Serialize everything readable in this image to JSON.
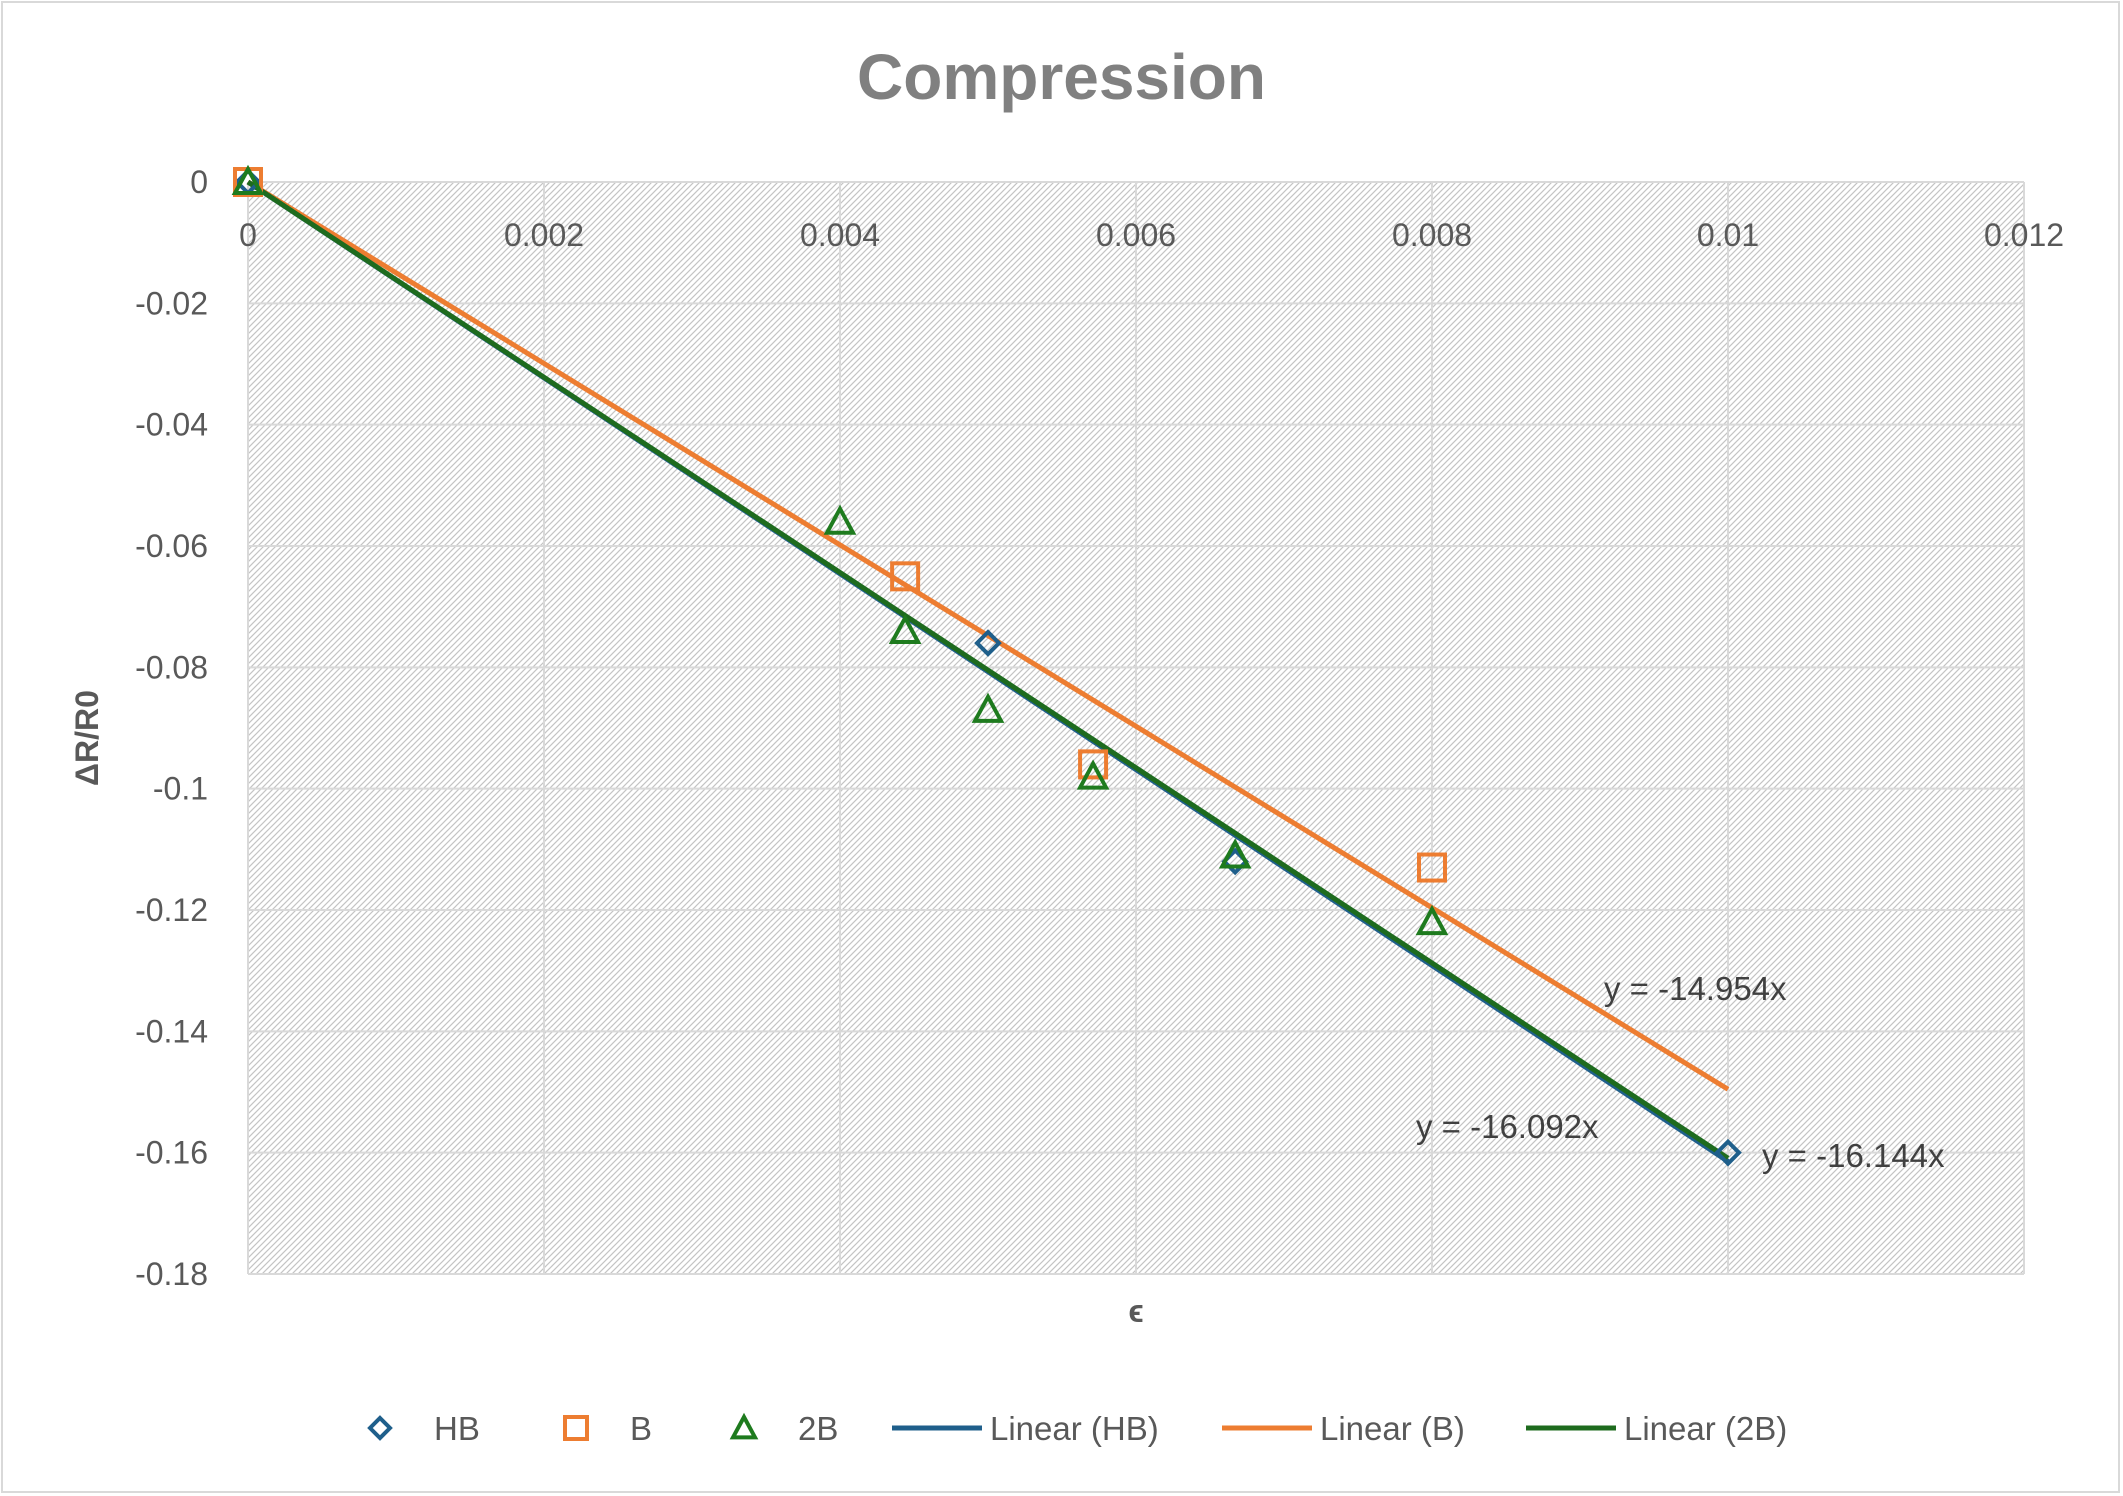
{
  "chart_data": {
    "type": "scatter",
    "title": "Compression",
    "xlabel": "ϵ",
    "ylabel": "ΔR/R0",
    "xlim": [
      0,
      0.012
    ],
    "ylim": [
      -0.18,
      0
    ],
    "grid": true,
    "legend_position": "bottom",
    "x_ticks": [
      "0",
      "0.002",
      "0.004",
      "0.006",
      "0.008",
      "0.01",
      "0.012"
    ],
    "y_ticks": [
      "0",
      "-0.02",
      "-0.04",
      "-0.06",
      "-0.08",
      "-0.1",
      "-0.12",
      "-0.14",
      "-0.16",
      "-0.18"
    ],
    "series": [
      {
        "name": "HB",
        "marker": "diamond",
        "color": "#1f5f8b",
        "points": [
          [
            0,
            0
          ],
          [
            0.005,
            -0.076
          ],
          [
            0.00667,
            -0.112
          ],
          [
            0.01,
            -0.16
          ]
        ]
      },
      {
        "name": "B",
        "marker": "square",
        "color": "#ed7d31",
        "points": [
          [
            0,
            0
          ],
          [
            0.00444,
            -0.065
          ],
          [
            0.00571,
            -0.096
          ],
          [
            0.008,
            -0.113
          ]
        ]
      },
      {
        "name": "2B",
        "marker": "triangle",
        "color": "#1e7b1e",
        "points": [
          [
            0,
            0
          ],
          [
            0.004,
            -0.056
          ],
          [
            0.00444,
            -0.074
          ],
          [
            0.005,
            -0.087
          ],
          [
            0.00571,
            -0.098
          ],
          [
            0.00667,
            -0.111
          ],
          [
            0.008,
            -0.122
          ]
        ]
      }
    ],
    "trendlines": [
      {
        "name": "Linear (HB)",
        "color": "#1f5f8b",
        "slope": -16.144,
        "x_range": [
          0,
          0.01
        ],
        "equation": "y = -16.144x"
      },
      {
        "name": "Linear (B)",
        "color": "#ed7d31",
        "slope": -14.954,
        "x_range": [
          0,
          0.01
        ],
        "equation": "y = -14.954x"
      },
      {
        "name": "Linear (2B)",
        "color": "#1e6b1e",
        "slope": -16.092,
        "x_range": [
          0,
          0.01
        ],
        "equation": "y = -16.092x"
      }
    ],
    "legend": [
      {
        "label": "HB",
        "kind": "marker",
        "marker": "diamond",
        "color": "#1f5f8b"
      },
      {
        "label": "B",
        "kind": "marker",
        "marker": "square",
        "color": "#ed7d31"
      },
      {
        "label": "2B",
        "kind": "marker",
        "marker": "triangle",
        "color": "#1e7b1e"
      },
      {
        "label": "Linear (HB)",
        "kind": "line",
        "color": "#1f5f8b"
      },
      {
        "label": "Linear (B)",
        "kind": "line",
        "color": "#ed7d31"
      },
      {
        "label": "Linear (2B)",
        "kind": "line",
        "color": "#1e6b1e"
      }
    ]
  }
}
